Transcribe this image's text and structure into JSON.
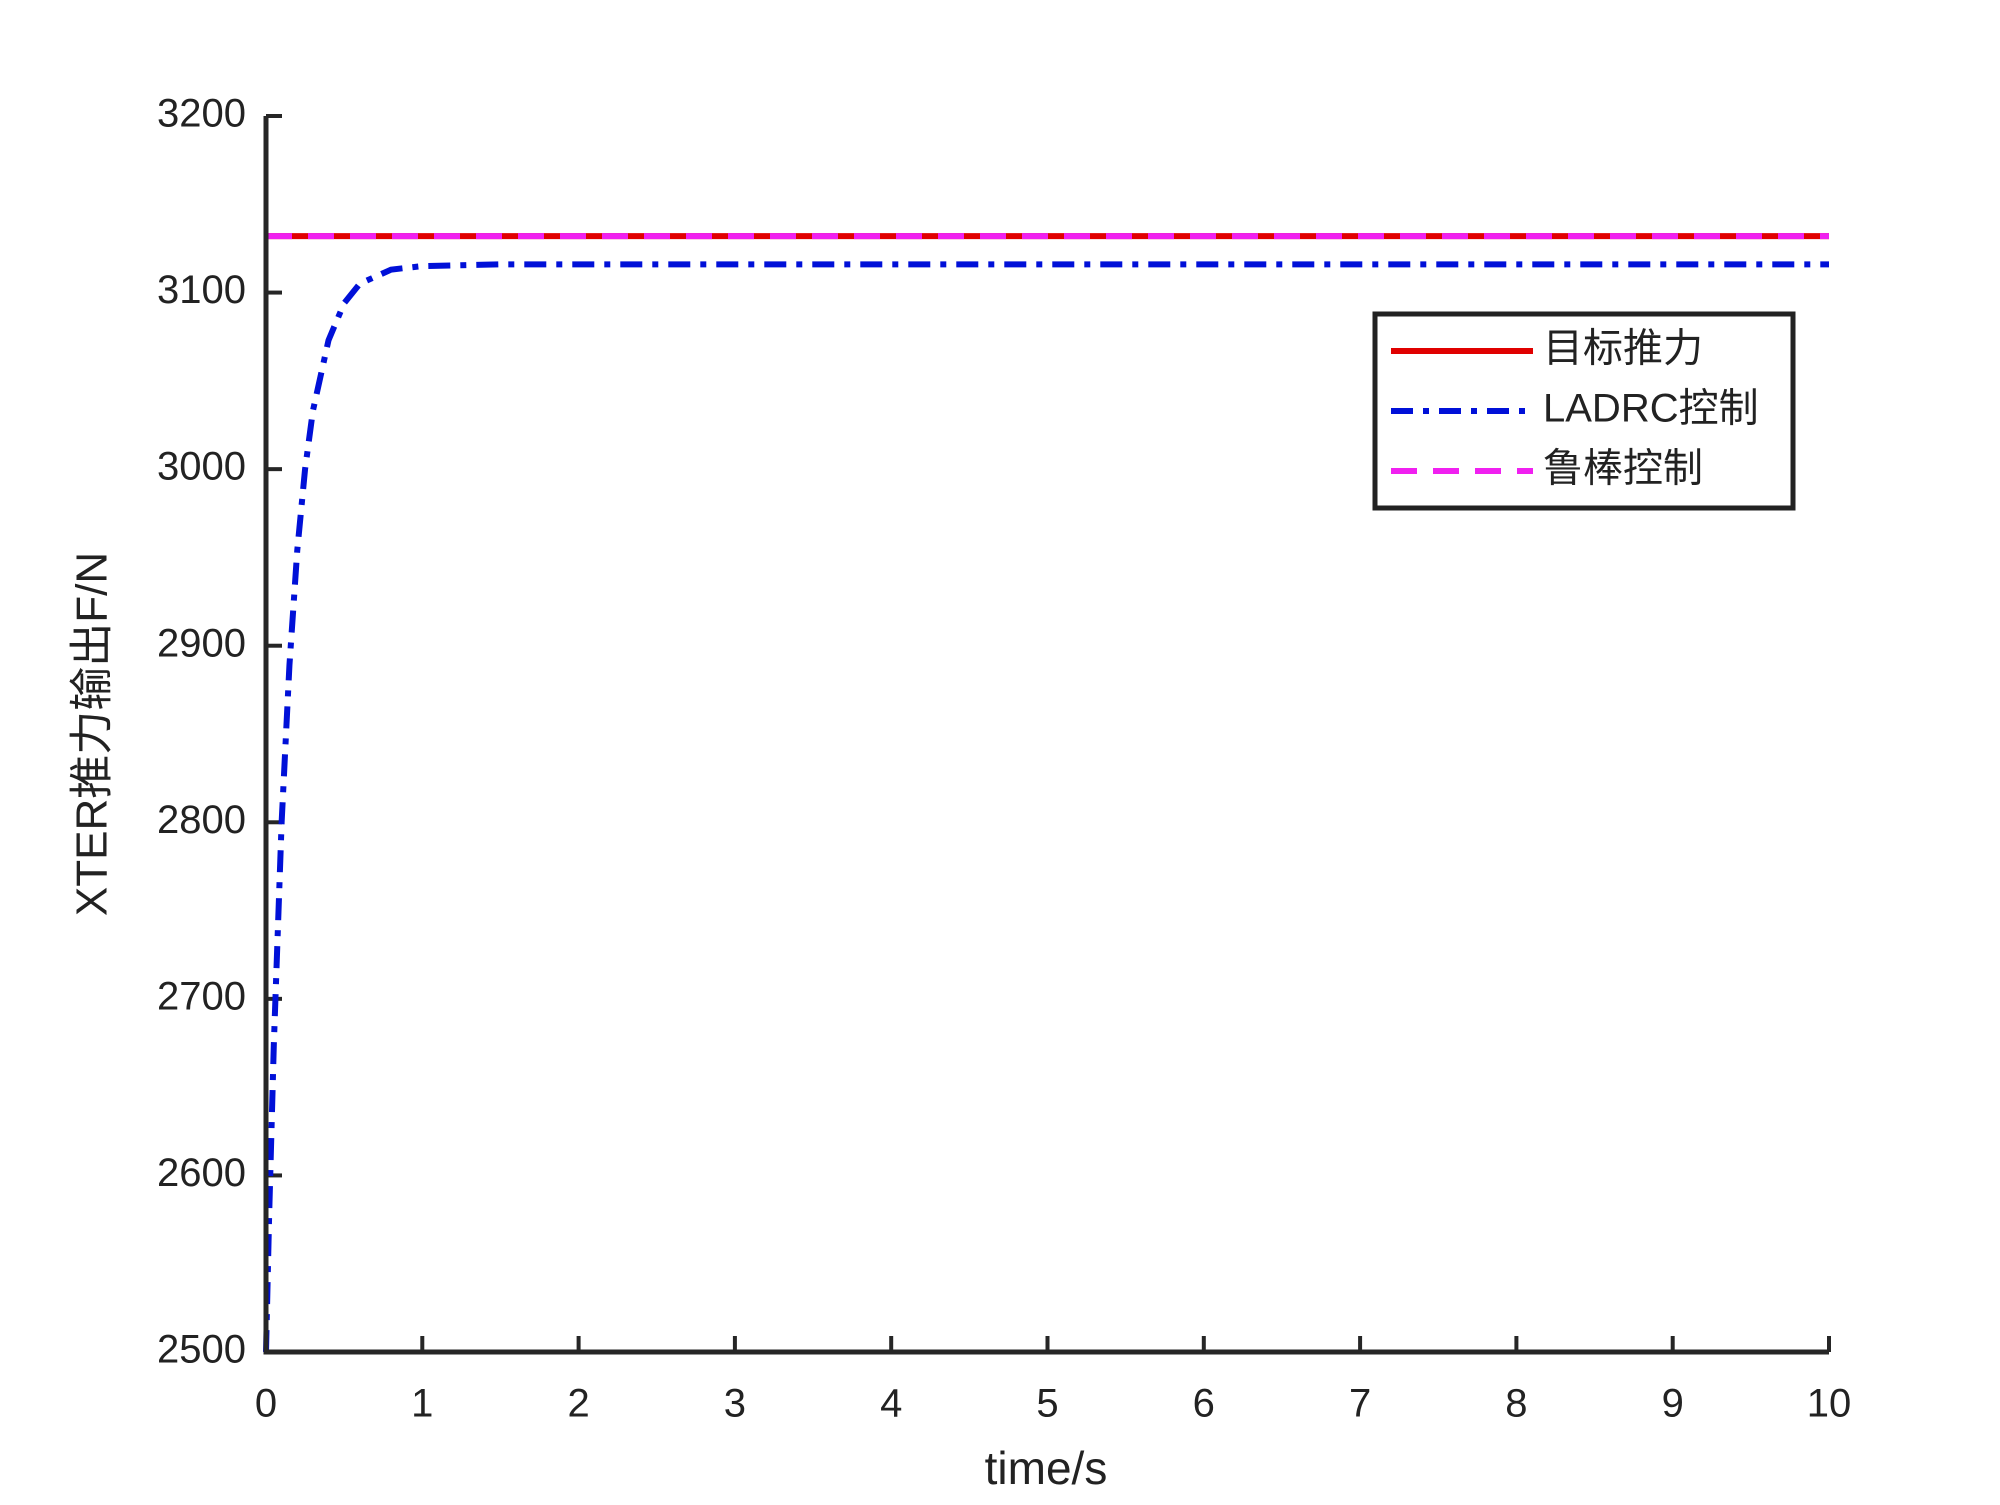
{
  "chart_data": {
    "type": "line",
    "x_label": "time/s",
    "y_label": "XTER推力输出F/N",
    "x": [
      0,
      0.02,
      0.05,
      0.1,
      0.15,
      0.2,
      0.25,
      0.3,
      0.4,
      0.5,
      0.6,
      0.8,
      1,
      1.5,
      2,
      3,
      4,
      5,
      6,
      7,
      8,
      9,
      10
    ],
    "series": [
      {
        "name": "目标推力",
        "color": "#e00000",
        "linestyle": "solid",
        "values": [
          3132,
          3132,
          3132,
          3132,
          3132,
          3132,
          3132,
          3132,
          3132,
          3132,
          3132,
          3132,
          3132,
          3132,
          3132,
          3132,
          3132,
          3132,
          3132,
          3132,
          3132,
          3132,
          3132
        ]
      },
      {
        "name": "LADRC控制",
        "color": "#0010d8",
        "linestyle": "dashdot",
        "values": [
          2500,
          2577,
          2674,
          2800,
          2889,
          2954,
          3000,
          3033,
          3073,
          3094,
          3105,
          3113,
          3115,
          3116,
          3116,
          3116,
          3116,
          3116,
          3116,
          3116,
          3116,
          3116,
          3116
        ]
      },
      {
        "name": "鲁棒控制",
        "color": "#f020f0",
        "linestyle": "dashed",
        "values": [
          3132,
          3132,
          3132,
          3132,
          3132,
          3132,
          3132,
          3132,
          3132,
          3132,
          3132,
          3132,
          3132,
          3132,
          3132,
          3132,
          3132,
          3132,
          3132,
          3132,
          3132,
          3132,
          3132
        ]
      }
    ],
    "xlim": [
      0,
      10
    ],
    "xticks": [
      0,
      1,
      2,
      3,
      4,
      5,
      6,
      7,
      8,
      9,
      10
    ],
    "ylim": [
      2500,
      3200
    ],
    "yticks": [
      2500,
      2600,
      2700,
      2800,
      2900,
      3000,
      3100,
      3200
    ],
    "grid": false,
    "legend": "upper right"
  }
}
